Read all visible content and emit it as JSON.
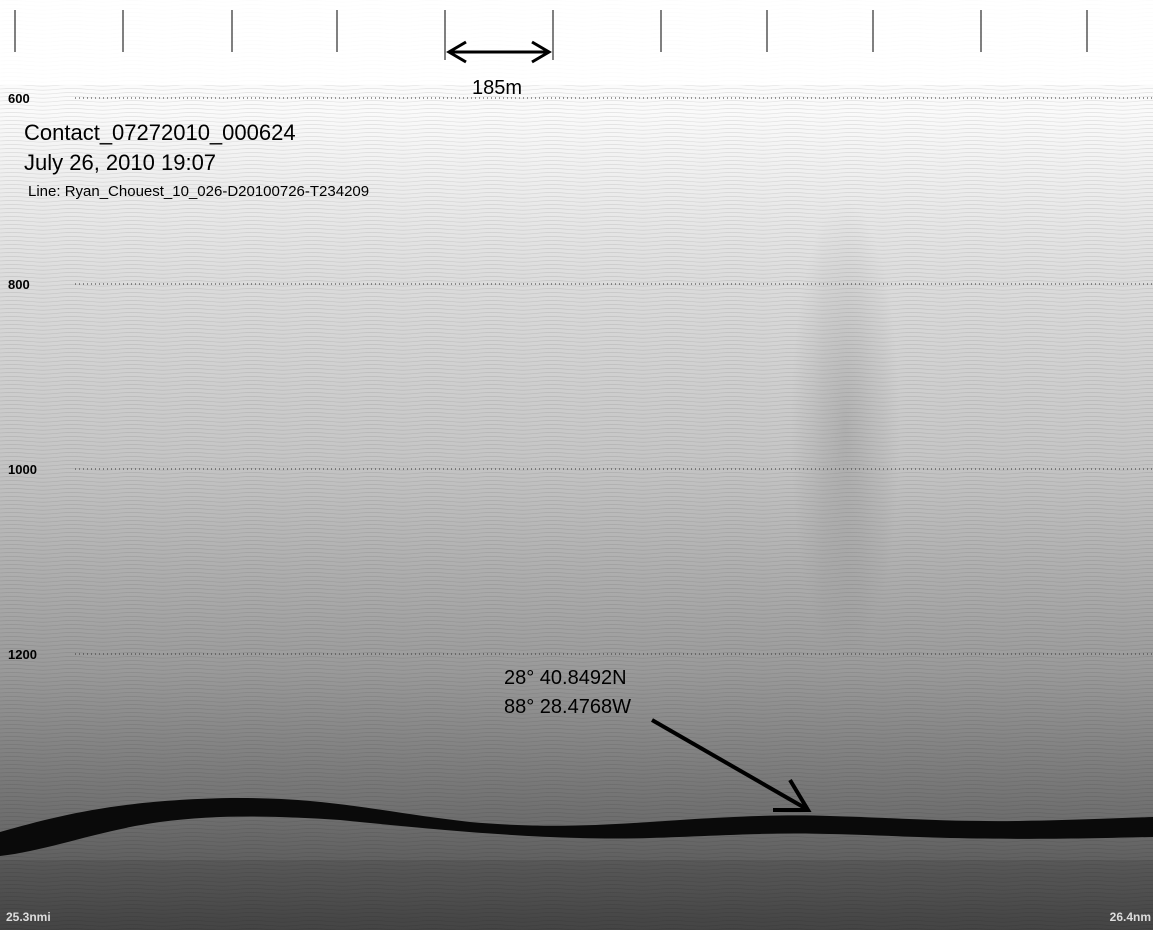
{
  "scale_bar": {
    "label": "185m"
  },
  "depth_labels": [
    "600",
    "800",
    "1000",
    "1200"
  ],
  "info": {
    "contact": "Contact_07272010_000624",
    "datetime": "July 26, 2010 19:07",
    "line": "Line: Ryan_Chouest_10_026-D20100726-T234209"
  },
  "coordinates": {
    "lat": "28° 40.8492N",
    "lon": "88° 28.4768W"
  },
  "range": {
    "start": "25.3nmi",
    "end": "26.4nm"
  }
}
